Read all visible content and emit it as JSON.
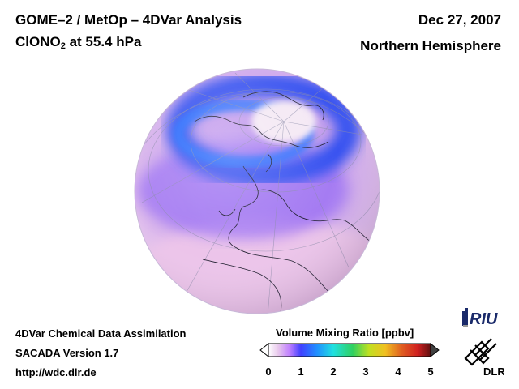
{
  "header": {
    "title": "GOME–2 / MetOp – 4DVar Analysis",
    "species_main": "ClONO",
    "species_sub": "2",
    "species_rest": " at 55.4 hPa",
    "date": "Dec 27, 2007",
    "hemisphere": "Northern Hemisphere"
  },
  "footer": {
    "line1": "4DVar Chemical Data Assimilation",
    "line2": "SACADA Version 1.7",
    "line3": "http://wdc.dlr.de"
  },
  "colorbar": {
    "title": "Volume Mixing Ratio [ppbv]",
    "range": [
      0,
      5
    ],
    "ticks": [
      "0",
      "1",
      "2",
      "3",
      "4",
      "5"
    ],
    "colors": [
      "#ffffff",
      "#e8c8ec",
      "#c080ff",
      "#4040ff",
      "#2090ff",
      "#20e0e0",
      "#30d060",
      "#c0e020",
      "#f0c020",
      "#e06020",
      "#d02020",
      "#601010"
    ]
  },
  "logos": {
    "riu": "RIU",
    "dlr": "DLR"
  },
  "map": {
    "projection": "orthographic",
    "center": "northern hemisphere"
  }
}
